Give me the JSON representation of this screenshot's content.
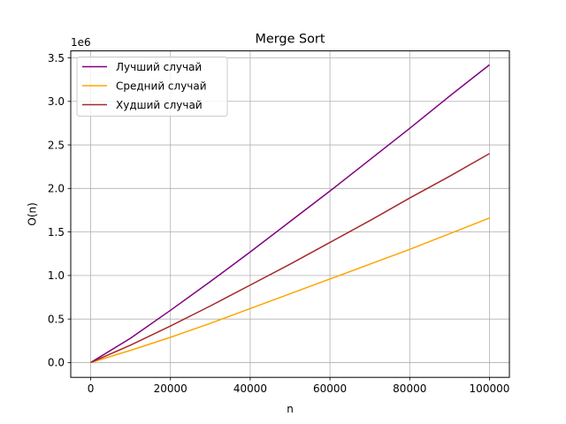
{
  "chart_data": {
    "type": "line",
    "title": "Merge Sort",
    "xlabel": "n",
    "ylabel": "O(n)",
    "y_offset_label": "1e6",
    "xlim": [
      -5000,
      105000
    ],
    "ylim": [
      -0.17,
      3.58
    ],
    "x_ticks": [
      0,
      20000,
      40000,
      60000,
      80000,
      100000
    ],
    "x_tick_labels": [
      "0",
      "20000",
      "40000",
      "60000",
      "80000",
      "100000"
    ],
    "y_ticks": [
      0.0,
      0.5,
      1.0,
      1.5,
      2.0,
      2.5,
      3.0,
      3.5
    ],
    "y_tick_labels": [
      "0.0",
      "0.5",
      "1.0",
      "1.5",
      "2.0",
      "2.5",
      "3.0",
      "3.5"
    ],
    "grid": true,
    "legend_position": "top-left",
    "x": [
      0,
      10000,
      20000,
      30000,
      40000,
      50000,
      60000,
      70000,
      80000,
      90000,
      100000
    ],
    "series": [
      {
        "name": "Лучший случай",
        "color": "#800080",
        "values": [
          0.0,
          0.28,
          0.6,
          0.93,
          1.27,
          1.62,
          1.97,
          2.33,
          2.69,
          3.06,
          3.42
        ]
      },
      {
        "name": "Средний случай",
        "color": "#ffa500",
        "values": [
          0.0,
          0.14,
          0.29,
          0.45,
          0.62,
          0.79,
          0.96,
          1.13,
          1.3,
          1.48,
          1.66
        ]
      },
      {
        "name": "Худший случай",
        "color": "#a52a2a",
        "values": [
          0.0,
          0.2,
          0.42,
          0.65,
          0.89,
          1.13,
          1.38,
          1.63,
          1.89,
          2.14,
          2.4
        ]
      }
    ]
  }
}
